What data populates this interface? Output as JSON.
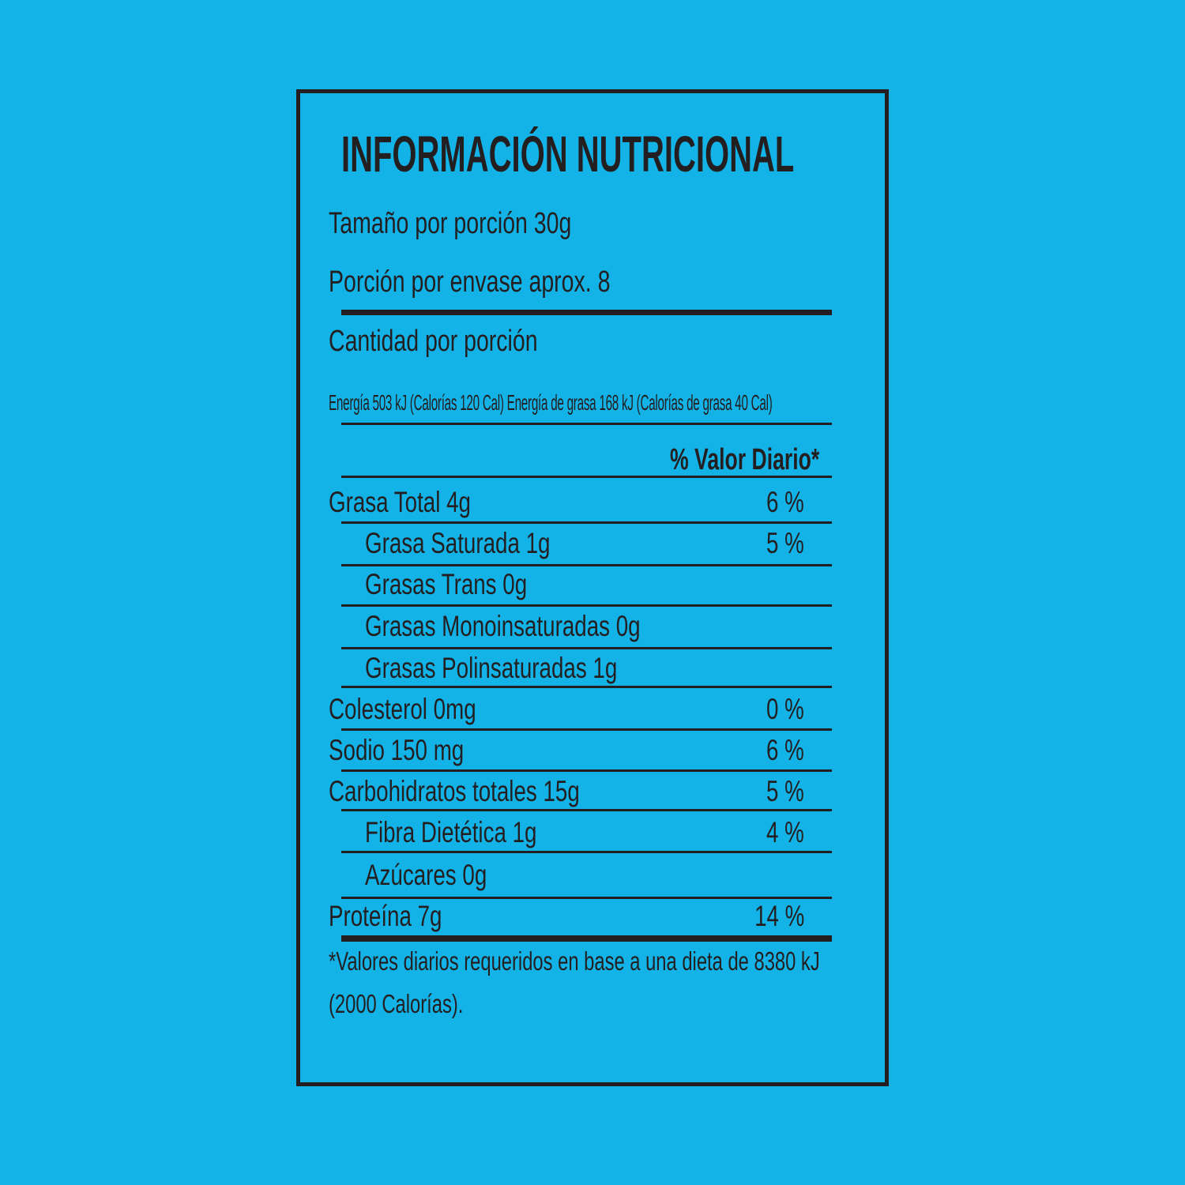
{
  "title": "INFORMACIÓN NUTRICIONAL",
  "serving_size": "Tamaño por porción 30g",
  "servings_per_container": "Porción por envase aprox.  8",
  "amount_per_serving": "Cantidad por porción",
  "energy_line": "Energía 503 kJ (Calorías 120 Cal) Energía de grasa 168 kJ (Calorías de grasa 40 Cal)",
  "daily_value_header": "% Valor Diario*",
  "rows": [
    {
      "label": "Grasa Total 4g",
      "dv": "6 %"
    },
    {
      "label": "Grasa Saturada 1g",
      "dv": "5 %"
    },
    {
      "label": "Grasas Trans 0g",
      "dv": ""
    },
    {
      "label": "Grasas Monoinsaturadas 0g",
      "dv": ""
    },
    {
      "label": "Grasas Polinsaturadas 1g",
      "dv": ""
    },
    {
      "label": "Colesterol 0mg",
      "dv": "0 %"
    },
    {
      "label": "Sodio 150 mg",
      "dv": "6 %"
    },
    {
      "label": "Carbohidratos totales 15g",
      "dv": "5 %"
    },
    {
      "label": "Fibra Dietética 1g",
      "dv": "4 %"
    },
    {
      "label": "Azúcares 0g",
      "dv": ""
    },
    {
      "label": "Proteína 7g",
      "dv": "14 %"
    }
  ],
  "footnote_line1": "*Valores diarios requeridos en base a una dieta de 8380 kJ",
  "footnote_line2": "(2000 Calorías).",
  "colors": {
    "background": "#13b3e8",
    "ink": "#231f20"
  }
}
